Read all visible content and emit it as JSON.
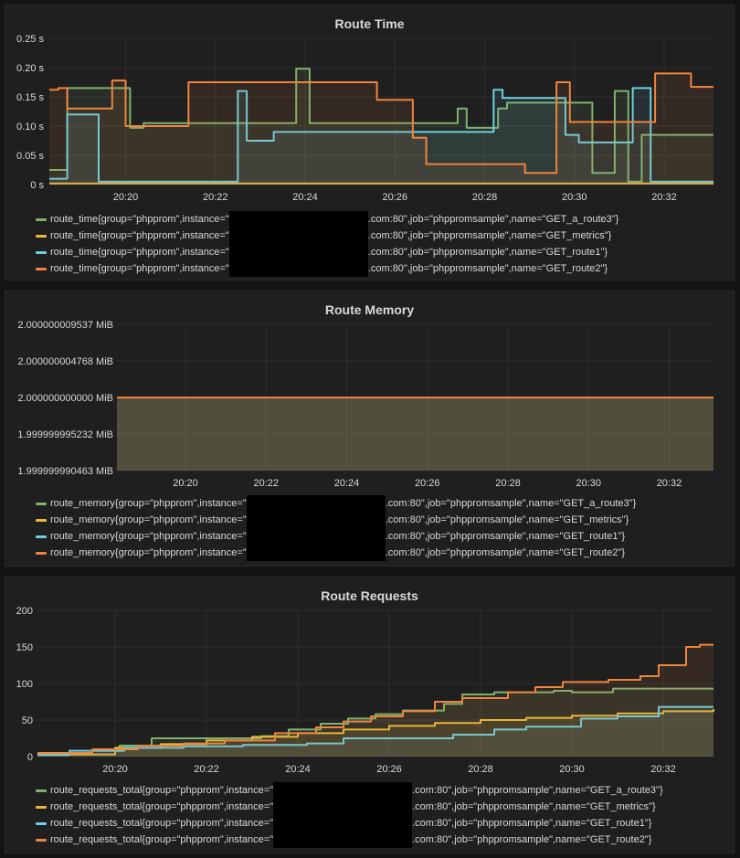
{
  "colors": {
    "green": "#7eb26d",
    "yellow": "#eab839",
    "blue": "#6ed0e0",
    "orange": "#ef843c"
  },
  "panels": [
    {
      "title": "Route Time",
      "legend": [
        {
          "prefix": "route_time{group=\"phpprom\",instance=\"",
          "suffix": ".com:80\",job=\"phppromsample\",name=\"GET_a_route3\"}",
          "color": "#7eb26d"
        },
        {
          "prefix": "route_time{group=\"phpprom\",instance=\"",
          "suffix": ".com:80\",job=\"phppromsample\",name=\"GET_metrics\"}",
          "color": "#eab839"
        },
        {
          "prefix": "route_time{group=\"phpprom\",instance=\"",
          "suffix": ".com:80\",job=\"phppromsample\",name=\"GET_route1\"}",
          "color": "#6ed0e0"
        },
        {
          "prefix": "route_time{group=\"phpprom\",instance=\"",
          "suffix": ".com:80\",job=\"phppromsample\",name=\"GET_route2\"}",
          "color": "#ef843c"
        }
      ]
    },
    {
      "title": "Route Memory",
      "legend": [
        {
          "prefix": "route_memory{group=\"phpprom\",instance=\"",
          "suffix": ".com:80\",job=\"phppromsample\",name=\"GET_a_route3\"}",
          "color": "#7eb26d"
        },
        {
          "prefix": "route_memory{group=\"phpprom\",instance=\"",
          "suffix": ".com:80\",job=\"phppromsample\",name=\"GET_metrics\"}",
          "color": "#eab839"
        },
        {
          "prefix": "route_memory{group=\"phpprom\",instance=\"",
          "suffix": ".com:80\",job=\"phppromsample\",name=\"GET_route1\"}",
          "color": "#6ed0e0"
        },
        {
          "prefix": "route_memory{group=\"phpprom\",instance=\"",
          "suffix": ".com:80\",job=\"phppromsample\",name=\"GET_route2\"}",
          "color": "#ef843c"
        }
      ]
    },
    {
      "title": "Route Requests",
      "legend": [
        {
          "prefix": "route_requests_total{group=\"phpprom\",instance=\"",
          "suffix": ".com:80\",job=\"phppromsample\",name=\"GET_a_route3\"}",
          "color": "#7eb26d"
        },
        {
          "prefix": "route_requests_total{group=\"phpprom\",instance=\"",
          "suffix": ".com:80\",job=\"phppromsample\",name=\"GET_metrics\"}",
          "color": "#eab839"
        },
        {
          "prefix": "route_requests_total{group=\"phpprom\",instance=\"",
          "suffix": ".com:80\",job=\"phppromsample\",name=\"GET_route1\"}",
          "color": "#6ed0e0"
        },
        {
          "prefix": "route_requests_total{group=\"phpprom\",instance=\"",
          "suffix": ".com:80\",job=\"phppromsample\",name=\"GET_route2\"}",
          "color": "#ef843c"
        }
      ]
    }
  ],
  "chart_data": [
    {
      "type": "line",
      "title": "Route Time",
      "x_unit": "minutes",
      "xlim": [
        "20:18.3",
        "20:33.1"
      ],
      "x_ticks": [
        "20:20",
        "20:22",
        "20:24",
        "20:26",
        "20:28",
        "20:30",
        "20:32"
      ],
      "x_tick_values": [
        20.0,
        22.0,
        24.0,
        26.0,
        28.0,
        30.0,
        32.0
      ],
      "x_min": 18.3,
      "x_max": 33.1,
      "ylim": [
        0,
        0.25
      ],
      "y_ticks": [
        "0 s",
        "0.05 s",
        "0.10 s",
        "0.15 s",
        "0.20 s",
        "0.25 s"
      ],
      "y_tick_values": [
        0,
        0.05,
        0.1,
        0.15,
        0.2,
        0.25
      ],
      "step": true,
      "fill": true,
      "series": [
        {
          "name": "route_time{group=\"phpprom\",instance=\"…\",job=\"phppromsample\",name=\"GET_a_route3\"}",
          "color": "#7eb26d",
          "points": [
            [
              18.3,
              0.025
            ],
            [
              18.7,
              0.165
            ],
            [
              19.8,
              0.165
            ],
            [
              20.1,
              0.097
            ],
            [
              20.4,
              0.105
            ],
            [
              23.5,
              0.105
            ],
            [
              23.8,
              0.198
            ],
            [
              24.0,
              0.198
            ],
            [
              24.1,
              0.105
            ],
            [
              27.2,
              0.105
            ],
            [
              27.4,
              0.13
            ],
            [
              27.6,
              0.097
            ],
            [
              28.3,
              0.13
            ],
            [
              28.5,
              0.14
            ],
            [
              30.3,
              0.14
            ],
            [
              30.4,
              0.02
            ],
            [
              30.9,
              0.02
            ],
            [
              30.9,
              0.16
            ],
            [
              31.1,
              0.16
            ],
            [
              31.2,
              0.005
            ],
            [
              31.5,
              0.005
            ],
            [
              31.5,
              0.085
            ],
            [
              33.1,
              0.085
            ]
          ]
        },
        {
          "name": "route_time{group=\"phpprom\",instance=\"…\",job=\"phppromsample\",name=\"GET_metrics\"}",
          "color": "#eab839",
          "points": [
            [
              18.3,
              0.002
            ],
            [
              33.1,
              0.002
            ]
          ]
        },
        {
          "name": "route_time{group=\"phpprom\",instance=\"…\",job=\"phppromsample\",name=\"GET_route1\"}",
          "color": "#6ed0e0",
          "points": [
            [
              18.3,
              0.01
            ],
            [
              18.7,
              0.12
            ],
            [
              19.3,
              0.12
            ],
            [
              19.4,
              0.005
            ],
            [
              22.3,
              0.005
            ],
            [
              22.5,
              0.16
            ],
            [
              22.7,
              0.075
            ],
            [
              23.2,
              0.075
            ],
            [
              23.3,
              0.09
            ],
            [
              28.1,
              0.09
            ],
            [
              28.2,
              0.162
            ],
            [
              28.4,
              0.148
            ],
            [
              29.7,
              0.148
            ],
            [
              29.8,
              0.085
            ],
            [
              30.1,
              0.072
            ],
            [
              31.2,
              0.072
            ],
            [
              31.3,
              0.165
            ],
            [
              31.6,
              0.165
            ],
            [
              31.7,
              0.005
            ],
            [
              33.1,
              0.005
            ]
          ]
        },
        {
          "name": "route_time{group=\"phpprom\",instance=\"…\",job=\"phppromsample\",name=\"GET_route2\"}",
          "color": "#ef843c",
          "points": [
            [
              18.3,
              0.162
            ],
            [
              18.5,
              0.165
            ],
            [
              18.7,
              0.13
            ],
            [
              19.6,
              0.13
            ],
            [
              19.7,
              0.178
            ],
            [
              19.9,
              0.178
            ],
            [
              20.0,
              0.1
            ],
            [
              21.3,
              0.1
            ],
            [
              21.4,
              0.175
            ],
            [
              25.5,
              0.175
            ],
            [
              25.6,
              0.145
            ],
            [
              26.3,
              0.145
            ],
            [
              26.4,
              0.08
            ],
            [
              26.6,
              0.08
            ],
            [
              26.7,
              0.035
            ],
            [
              28.8,
              0.035
            ],
            [
              28.9,
              0.02
            ],
            [
              29.5,
              0.02
            ],
            [
              29.6,
              0.175
            ],
            [
              29.8,
              0.175
            ],
            [
              29.9,
              0.107
            ],
            [
              31.7,
              0.107
            ],
            [
              31.8,
              0.19
            ],
            [
              32.5,
              0.19
            ],
            [
              32.6,
              0.167
            ],
            [
              33.1,
              0.167
            ]
          ]
        }
      ]
    },
    {
      "type": "line",
      "title": "Route Memory",
      "x_unit": "minutes",
      "x_ticks": [
        "20:20",
        "20:22",
        "20:24",
        "20:26",
        "20:28",
        "20:30",
        "20:32"
      ],
      "x_tick_values": [
        20.0,
        22.0,
        24.0,
        26.0,
        28.0,
        30.0,
        32.0
      ],
      "x_min": 18.3,
      "x_max": 33.1,
      "ylim": [
        1.999999990463,
        2.000000009537
      ],
      "y_ticks": [
        "2.000000009537 MiB",
        "2.000000004768 MiB",
        "2.000000000000 MiB",
        "1.999999995232 MiB",
        "1.999999990463 MiB"
      ],
      "y_tick_values": [
        2.000000009537,
        2.000000004768,
        2.0,
        1.999999995232,
        1.999999990463
      ],
      "fill": true,
      "series": [
        {
          "name": "route_memory{...GET_a_route3}",
          "color": "#7eb26d",
          "points": [
            [
              18.3,
              2.0
            ],
            [
              33.1,
              2.0
            ]
          ]
        },
        {
          "name": "route_memory{...GET_metrics}",
          "color": "#eab839",
          "points": [
            [
              18.3,
              2.0
            ],
            [
              33.1,
              2.0
            ]
          ]
        },
        {
          "name": "route_memory{...GET_route1}",
          "color": "#6ed0e0",
          "points": [
            [
              18.3,
              2.0
            ],
            [
              33.1,
              2.0
            ]
          ]
        },
        {
          "name": "route_memory{...GET_route2}",
          "color": "#ef843c",
          "points": [
            [
              18.3,
              2.0
            ],
            [
              33.1,
              2.0
            ]
          ]
        }
      ]
    },
    {
      "type": "line",
      "title": "Route Requests",
      "x_unit": "minutes",
      "x_ticks": [
        "20:20",
        "20:22",
        "20:24",
        "20:26",
        "20:28",
        "20:30",
        "20:32"
      ],
      "x_tick_values": [
        20.0,
        22.0,
        24.0,
        26.0,
        28.0,
        30.0,
        32.0
      ],
      "x_min": 18.3,
      "x_max": 33.1,
      "ylim": [
        0,
        200
      ],
      "y_ticks": [
        "0",
        "50",
        "100",
        "150",
        "200"
      ],
      "y_tick_values": [
        0,
        50,
        100,
        150,
        200
      ],
      "step": true,
      "fill": true,
      "series": [
        {
          "name": "route_requests_total{...GET_a_route3}",
          "color": "#7eb26d",
          "points": [
            [
              18.3,
              3
            ],
            [
              19.5,
              8
            ],
            [
              20.1,
              15
            ],
            [
              20.8,
              25
            ],
            [
              22.0,
              25
            ],
            [
              23.2,
              28
            ],
            [
              23.8,
              37
            ],
            [
              24.5,
              45
            ],
            [
              25.1,
              52
            ],
            [
              25.7,
              58
            ],
            [
              26.3,
              63
            ],
            [
              27.2,
              72
            ],
            [
              27.6,
              85
            ],
            [
              28.3,
              88
            ],
            [
              29.3,
              88
            ],
            [
              29.6,
              90
            ],
            [
              30.0,
              88
            ],
            [
              30.9,
              93
            ],
            [
              33.1,
              93
            ]
          ]
        },
        {
          "name": "route_requests_total{...GET_metrics}",
          "color": "#eab839",
          "points": [
            [
              18.3,
              3
            ],
            [
              20.0,
              12
            ],
            [
              21.0,
              17
            ],
            [
              22.0,
              22
            ],
            [
              23.0,
              27
            ],
            [
              24.0,
              32
            ],
            [
              25.0,
              37
            ],
            [
              26.0,
              42
            ],
            [
              27.0,
              46
            ],
            [
              28.0,
              50
            ],
            [
              29.0,
              53
            ],
            [
              30.0,
              56
            ],
            [
              31.0,
              59
            ],
            [
              32.0,
              62
            ],
            [
              33.1,
              65
            ]
          ]
        },
        {
          "name": "route_requests_total{...GET_route1}",
          "color": "#6ed0e0",
          "points": [
            [
              18.3,
              2
            ],
            [
              19.0,
              8
            ],
            [
              20.2,
              12
            ],
            [
              21.5,
              14
            ],
            [
              22.8,
              16
            ],
            [
              24.2,
              18
            ],
            [
              25.0,
              25
            ],
            [
              27.0,
              25
            ],
            [
              27.4,
              30
            ],
            [
              28.3,
              37
            ],
            [
              29.0,
              41
            ],
            [
              30.2,
              52
            ],
            [
              31.0,
              55
            ],
            [
              31.9,
              68
            ],
            [
              33.1,
              68
            ]
          ]
        },
        {
          "name": "route_requests_total{...GET_route2}",
          "color": "#ef843c",
          "points": [
            [
              18.3,
              5
            ],
            [
              19.5,
              10
            ],
            [
              20.5,
              15
            ],
            [
              21.5,
              18
            ],
            [
              22.4,
              22
            ],
            [
              23.5,
              32
            ],
            [
              24.4,
              40
            ],
            [
              25.0,
              48
            ],
            [
              25.6,
              55
            ],
            [
              26.3,
              62
            ],
            [
              27.0,
              75
            ],
            [
              27.6,
              80
            ],
            [
              28.6,
              88
            ],
            [
              29.2,
              95
            ],
            [
              29.8,
              102
            ],
            [
              30.8,
              105
            ],
            [
              31.5,
              110
            ],
            [
              31.9,
              125
            ],
            [
              32.5,
              150
            ],
            [
              32.8,
              153
            ],
            [
              33.1,
              153
            ]
          ]
        }
      ]
    }
  ]
}
